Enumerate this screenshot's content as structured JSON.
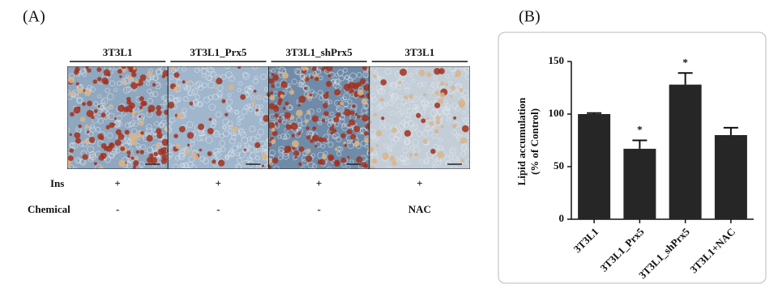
{
  "panel_a": {
    "label": "(A)",
    "columns": [
      "3T3L1",
      "3T3L1_Prx5",
      "3T3L1_shPrx5",
      "3T3L1"
    ],
    "rows": [
      {
        "name": "Ins",
        "values": [
          "+",
          "+",
          "+",
          "+"
        ]
      },
      {
        "name": "Chemical",
        "values": [
          "-",
          "-",
          "-",
          "NAC"
        ]
      }
    ]
  },
  "chart_data": {
    "type": "bar",
    "panel_label": "(B)",
    "y_label": [
      "Lipid accumulation",
      "(% of Control)"
    ],
    "categories": [
      "3T3L1",
      "3T3L1_Prx5",
      "3T3L1_shPrx5",
      "3T3L1+NAC"
    ],
    "values": [
      100,
      67,
      128,
      80
    ],
    "errors": [
      1,
      8,
      11,
      7
    ],
    "significance": [
      null,
      "*",
      "*",
      null
    ],
    "color": "#262626",
    "ylim": [
      0,
      150
    ],
    "yticks": [
      0,
      50,
      100,
      150
    ]
  }
}
